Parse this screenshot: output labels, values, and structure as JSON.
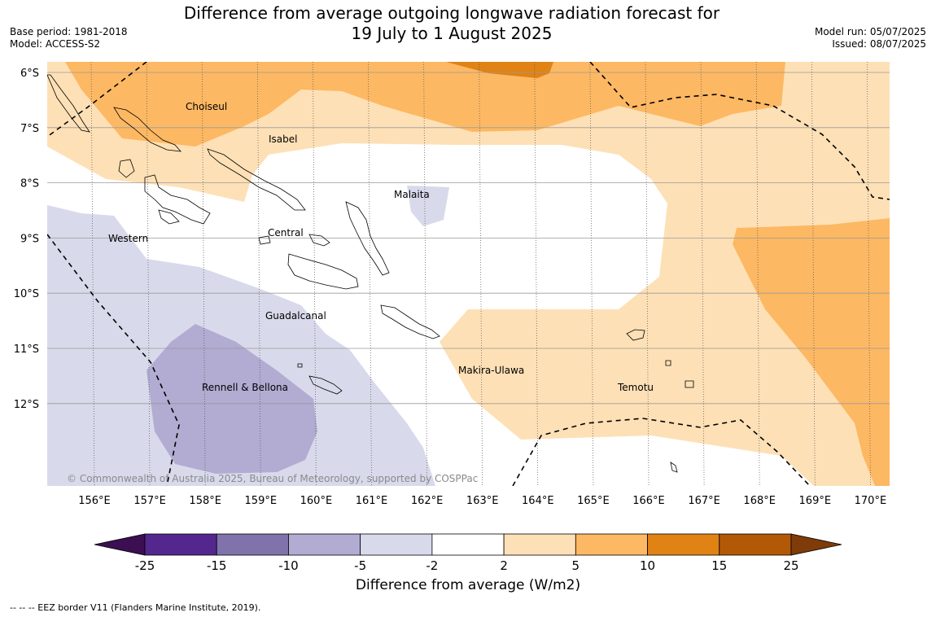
{
  "header": {
    "title_line1": "Difference from average outgoing longwave radiation forecast for",
    "title_line2": "19 July to 1 August 2025",
    "base_period": "Base period: 1981-2018",
    "model": "Model: ACCESS-S2",
    "model_run": "Model run: 05/07/2025",
    "issued": "Issued: 08/07/2025"
  },
  "map": {
    "lat_labels": [
      "6°S",
      "7°S",
      "8°S",
      "9°S",
      "10°S",
      "11°S",
      "12°S"
    ],
    "lon_labels": [
      "156°E",
      "157°E",
      "158°E",
      "159°E",
      "160°E",
      "161°E",
      "162°E",
      "163°E",
      "164°E",
      "165°E",
      "166°E",
      "167°E",
      "168°E",
      "169°E",
      "170°E"
    ],
    "regions": [
      {
        "name": "Choiseul"
      },
      {
        "name": "Isabel"
      },
      {
        "name": "Malaita"
      },
      {
        "name": "Western"
      },
      {
        "name": "Central"
      },
      {
        "name": "Guadalcanal"
      },
      {
        "name": "Makira-Ulawa"
      },
      {
        "name": "Rennell & Bellona"
      },
      {
        "name": "Temotu"
      }
    ],
    "copyright": "© Commonwealth of Australia 2025, Bureau of Meteorology, supported by COSPPac"
  },
  "colorbar": {
    "title": "Difference from average (W/m2)",
    "ticks": [
      "-25",
      "-15",
      "-10",
      "-5",
      "-2",
      "2",
      "5",
      "10",
      "15",
      "25"
    ],
    "colors": [
      "#3b0f52",
      "#54278f",
      "#8073ac",
      "#b2abd2",
      "#d8daeb",
      "#ffffff",
      "#fee0b6",
      "#fdb863",
      "#e08214",
      "#b35806",
      "#7f3b08"
    ]
  },
  "footer": {
    "legend_note": "--  --  -- EEZ border V11 (Flanders Marine Institute, 2019)."
  }
}
